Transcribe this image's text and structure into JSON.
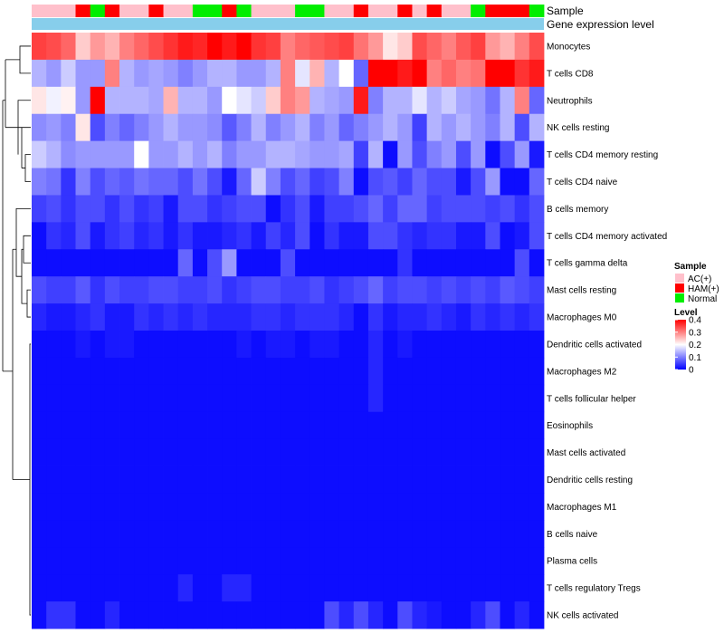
{
  "chart_data": {
    "type": "heatmap",
    "title": "",
    "columns": 35,
    "annotation_tracks": [
      {
        "name": "Sample",
        "label": "Sample"
      },
      {
        "name": "Gene expression level",
        "label": "Gene expression level"
      }
    ],
    "sample_annotation": [
      "AC(+)",
      "AC(+)",
      "AC(+)",
      "HAM(+)",
      "Normal",
      "HAM(+)",
      "AC(+)",
      "AC(+)",
      "HAM(+)",
      "AC(+)",
      "AC(+)",
      "Normal",
      "Normal",
      "HAM(+)",
      "Normal",
      "AC(+)",
      "AC(+)",
      "AC(+)",
      "Normal",
      "Normal",
      "AC(+)",
      "AC(+)",
      "HAM(+)",
      "AC(+)",
      "AC(+)",
      "HAM(+)",
      "AC(+)",
      "HAM(+)",
      "AC(+)",
      "AC(+)",
      "Normal",
      "HAM(+)",
      "HAM(+)",
      "HAM(+)",
      "Normal"
    ],
    "gene_expression_color": "#87CEEB",
    "rows": [
      "Monocytes",
      "T cells CD8",
      "Neutrophils",
      "NK cells resting",
      "T cells CD4 memory resting",
      "T cells CD4 naive",
      "B cells memory",
      "T cells CD4 memory activated",
      "T cells gamma delta",
      "Mast cells resting",
      "Macrophages M0",
      "Dendritic cells activated",
      "Macrophages M2",
      "T cells follicular helper",
      "Eosinophils",
      "Mast cells activated",
      "Dendritic cells resting",
      "Macrophages M1",
      "B cells naive",
      "Plasma cells",
      "T cells regulatory  Tregs",
      "NK cells activated"
    ],
    "values": [
      [
        0.35,
        0.34,
        0.32,
        0.24,
        0.28,
        0.26,
        0.3,
        0.32,
        0.34,
        0.36,
        0.38,
        0.37,
        0.4,
        0.38,
        0.4,
        0.36,
        0.35,
        0.3,
        0.32,
        0.33,
        0.34,
        0.35,
        0.31,
        0.28,
        0.22,
        0.24,
        0.34,
        0.32,
        0.3,
        0.33,
        0.35,
        0.28,
        0.26,
        0.3,
        0.34
      ],
      [
        0.14,
        0.12,
        0.16,
        0.12,
        0.12,
        0.3,
        0.14,
        0.12,
        0.13,
        0.12,
        0.1,
        0.12,
        0.14,
        0.14,
        0.12,
        0.12,
        0.14,
        0.3,
        0.18,
        0.26,
        0.14,
        0.2,
        0.08,
        0.41,
        0.4,
        0.38,
        0.4,
        0.3,
        0.32,
        0.3,
        0.31,
        0.4,
        0.41,
        0.36,
        0.38
      ],
      [
        0.22,
        0.19,
        0.21,
        0.12,
        0.4,
        0.14,
        0.14,
        0.14,
        0.13,
        0.26,
        0.14,
        0.14,
        0.12,
        0.2,
        0.18,
        0.16,
        0.24,
        0.3,
        0.28,
        0.14,
        0.13,
        0.12,
        0.38,
        0.1,
        0.14,
        0.14,
        0.18,
        0.14,
        0.16,
        0.13,
        0.12,
        0.09,
        0.14,
        0.3,
        0.08
      ],
      [
        0.11,
        0.12,
        0.1,
        0.22,
        0.06,
        0.1,
        0.08,
        0.1,
        0.12,
        0.14,
        0.12,
        0.12,
        0.11,
        0.07,
        0.1,
        0.14,
        0.1,
        0.12,
        0.14,
        0.1,
        0.12,
        0.08,
        0.1,
        0.12,
        0.14,
        0.12,
        0.05,
        0.14,
        0.12,
        0.14,
        0.12,
        0.1,
        0.14,
        0.06,
        0.14
      ],
      [
        0.16,
        0.14,
        0.11,
        0.12,
        0.12,
        0.12,
        0.12,
        0.2,
        0.12,
        0.12,
        0.14,
        0.12,
        0.14,
        0.1,
        0.12,
        0.12,
        0.14,
        0.14,
        0.13,
        0.12,
        0.12,
        0.13,
        0.05,
        0.14,
        0.01,
        0.12,
        0.06,
        0.1,
        0.12,
        0.06,
        0.12,
        0.01,
        0.06,
        0.12,
        0.02
      ],
      [
        0.1,
        0.09,
        0.04,
        0.1,
        0.06,
        0.08,
        0.07,
        0.09,
        0.08,
        0.08,
        0.06,
        0.09,
        0.06,
        0.02,
        0.08,
        0.16,
        0.1,
        0.06,
        0.08,
        0.05,
        0.06,
        0.1,
        0.01,
        0.06,
        0.07,
        0.05,
        0.08,
        0.06,
        0.06,
        0.02,
        0.06,
        0.12,
        0.01,
        0.01,
        0.08
      ],
      [
        0.05,
        0.06,
        0.04,
        0.06,
        0.06,
        0.04,
        0.06,
        0.04,
        0.05,
        0.02,
        0.06,
        0.06,
        0.04,
        0.05,
        0.06,
        0.06,
        0.01,
        0.04,
        0.06,
        0.02,
        0.05,
        0.05,
        0.06,
        0.08,
        0.05,
        0.08,
        0.08,
        0.05,
        0.06,
        0.06,
        0.06,
        0.05,
        0.06,
        0.04,
        0.06
      ],
      [
        0.01,
        0.04,
        0.03,
        0.06,
        0.02,
        0.04,
        0.05,
        0.03,
        0.04,
        0.02,
        0.04,
        0.02,
        0.02,
        0.03,
        0.04,
        0.02,
        0.05,
        0.03,
        0.06,
        0.01,
        0.04,
        0.02,
        0.02,
        0.06,
        0.06,
        0.04,
        0.03,
        0.04,
        0.04,
        0.02,
        0.02,
        0.06,
        0.01,
        0.02,
        0.06
      ],
      [
        0.01,
        0.01,
        0.01,
        0.01,
        0.01,
        0.01,
        0.01,
        0.01,
        0.01,
        0.01,
        0.08,
        0.01,
        0.06,
        0.12,
        0.01,
        0.01,
        0.01,
        0.06,
        0.01,
        0.01,
        0.01,
        0.01,
        0.01,
        0.01,
        0.01,
        0.04,
        0.01,
        0.01,
        0.01,
        0.01,
        0.01,
        0.01,
        0.01,
        0.06,
        0.01
      ],
      [
        0.06,
        0.05,
        0.05,
        0.07,
        0.04,
        0.06,
        0.05,
        0.05,
        0.06,
        0.06,
        0.05,
        0.05,
        0.06,
        0.04,
        0.05,
        0.06,
        0.06,
        0.05,
        0.05,
        0.06,
        0.04,
        0.05,
        0.06,
        0.08,
        0.05,
        0.06,
        0.06,
        0.05,
        0.06,
        0.05,
        0.06,
        0.05,
        0.07,
        0.06,
        0.05
      ],
      [
        0.03,
        0.02,
        0.02,
        0.03,
        0.04,
        0.02,
        0.02,
        0.04,
        0.03,
        0.04,
        0.03,
        0.04,
        0.03,
        0.03,
        0.03,
        0.04,
        0.04,
        0.03,
        0.04,
        0.04,
        0.04,
        0.03,
        0.01,
        0.04,
        0.02,
        0.03,
        0.03,
        0.04,
        0.03,
        0.02,
        0.04,
        0.03,
        0.04,
        0.03,
        0.04
      ],
      [
        0.01,
        0.01,
        0.01,
        0.02,
        0.01,
        0.02,
        0.02,
        0.01,
        0.01,
        0.01,
        0.01,
        0.01,
        0.01,
        0.01,
        0.02,
        0.01,
        0.02,
        0.02,
        0.01,
        0.02,
        0.02,
        0.01,
        0.01,
        0.03,
        0.01,
        0.02,
        0.01,
        0.01,
        0.01,
        0.01,
        0.01,
        0.01,
        0.01,
        0.01,
        0.01
      ],
      [
        0.01,
        0.01,
        0.01,
        0.01,
        0.01,
        0.01,
        0.01,
        0.01,
        0.01,
        0.01,
        0.01,
        0.01,
        0.01,
        0.01,
        0.01,
        0.01,
        0.01,
        0.01,
        0.01,
        0.01,
        0.01,
        0.01,
        0.01,
        0.03,
        0.01,
        0.01,
        0.01,
        0.01,
        0.01,
        0.01,
        0.01,
        0.01,
        0.01,
        0.01,
        0.01
      ],
      [
        0.01,
        0.01,
        0.01,
        0.01,
        0.01,
        0.01,
        0.01,
        0.01,
        0.01,
        0.01,
        0.01,
        0.01,
        0.01,
        0.01,
        0.01,
        0.01,
        0.01,
        0.01,
        0.01,
        0.01,
        0.01,
        0.01,
        0.01,
        0.03,
        0.01,
        0.01,
        0.01,
        0.01,
        0.01,
        0.01,
        0.01,
        0.01,
        0.01,
        0.01,
        0.01
      ],
      [
        0.01,
        0.01,
        0.01,
        0.01,
        0.01,
        0.01,
        0.01,
        0.01,
        0.01,
        0.01,
        0.01,
        0.01,
        0.01,
        0.01,
        0.01,
        0.01,
        0.01,
        0.01,
        0.01,
        0.01,
        0.01,
        0.01,
        0.01,
        0.01,
        0.01,
        0.01,
        0.01,
        0.01,
        0.01,
        0.01,
        0.01,
        0.01,
        0.01,
        0.01,
        0.01
      ],
      [
        0.01,
        0.01,
        0.01,
        0.01,
        0.01,
        0.01,
        0.01,
        0.01,
        0.01,
        0.01,
        0.01,
        0.01,
        0.01,
        0.01,
        0.01,
        0.01,
        0.01,
        0.01,
        0.01,
        0.01,
        0.01,
        0.01,
        0.01,
        0.01,
        0.01,
        0.01,
        0.01,
        0.01,
        0.01,
        0.01,
        0.01,
        0.01,
        0.01,
        0.01,
        0.01
      ],
      [
        0.01,
        0.01,
        0.01,
        0.01,
        0.01,
        0.01,
        0.01,
        0.01,
        0.01,
        0.01,
        0.01,
        0.01,
        0.01,
        0.01,
        0.01,
        0.01,
        0.01,
        0.01,
        0.01,
        0.01,
        0.01,
        0.01,
        0.01,
        0.01,
        0.01,
        0.01,
        0.01,
        0.01,
        0.01,
        0.01,
        0.01,
        0.01,
        0.01,
        0.01,
        0.01
      ],
      [
        0.01,
        0.01,
        0.01,
        0.01,
        0.01,
        0.01,
        0.01,
        0.01,
        0.01,
        0.01,
        0.01,
        0.01,
        0.01,
        0.01,
        0.01,
        0.01,
        0.01,
        0.01,
        0.01,
        0.01,
        0.01,
        0.01,
        0.01,
        0.01,
        0.01,
        0.01,
        0.01,
        0.01,
        0.01,
        0.01,
        0.01,
        0.01,
        0.01,
        0.01,
        0.01
      ],
      [
        0.01,
        0.01,
        0.01,
        0.01,
        0.01,
        0.01,
        0.01,
        0.01,
        0.01,
        0.01,
        0.01,
        0.01,
        0.01,
        0.01,
        0.01,
        0.01,
        0.01,
        0.01,
        0.01,
        0.01,
        0.01,
        0.01,
        0.01,
        0.01,
        0.01,
        0.01,
        0.01,
        0.01,
        0.01,
        0.01,
        0.01,
        0.01,
        0.01,
        0.01,
        0.01
      ],
      [
        0.01,
        0.01,
        0.01,
        0.01,
        0.01,
        0.01,
        0.01,
        0.01,
        0.01,
        0.01,
        0.01,
        0.01,
        0.01,
        0.01,
        0.01,
        0.01,
        0.01,
        0.01,
        0.01,
        0.01,
        0.01,
        0.01,
        0.01,
        0.01,
        0.01,
        0.01,
        0.01,
        0.01,
        0.01,
        0.01,
        0.01,
        0.01,
        0.01,
        0.01,
        0.01
      ],
      [
        0.01,
        0.01,
        0.01,
        0.01,
        0.01,
        0.01,
        0.01,
        0.01,
        0.01,
        0.01,
        0.03,
        0.01,
        0.01,
        0.03,
        0.03,
        0.01,
        0.01,
        0.01,
        0.01,
        0.01,
        0.01,
        0.01,
        0.01,
        0.01,
        0.01,
        0.01,
        0.01,
        0.01,
        0.01,
        0.01,
        0.01,
        0.01,
        0.01,
        0.01,
        0.01
      ],
      [
        0.01,
        0.04,
        0.04,
        0.01,
        0.01,
        0.03,
        0.01,
        0.01,
        0.01,
        0.01,
        0.01,
        0.01,
        0.01,
        0.01,
        0.01,
        0.01,
        0.01,
        0.01,
        0.01,
        0.01,
        0.06,
        0.03,
        0.06,
        0.03,
        0.01,
        0.06,
        0.03,
        0.02,
        0.01,
        0.01,
        0.03,
        0.06,
        0.01,
        0.03,
        0.01
      ]
    ],
    "legend": {
      "sample_title": "Sample",
      "sample_items": [
        {
          "label": "AC(+)",
          "color": "#FFC0CB"
        },
        {
          "label": "HAM(+)",
          "color": "#FF0000"
        },
        {
          "label": "Normal",
          "color": "#00EE00"
        }
      ],
      "level_title": "Level",
      "level_ticks": [
        {
          "label": "0.4",
          "value": 0.4
        },
        {
          "label": "0.3",
          "value": 0.3
        },
        {
          "label": "0.2",
          "value": 0.2
        },
        {
          "label": "0.1",
          "value": 0.1
        },
        {
          "label": "0",
          "value": 0
        }
      ]
    },
    "color_scale": {
      "low": "#0000FF",
      "mid": "#FFFFFF",
      "high": "#FF0000",
      "min": 0,
      "mid_value": 0.2,
      "max": 0.4
    }
  }
}
